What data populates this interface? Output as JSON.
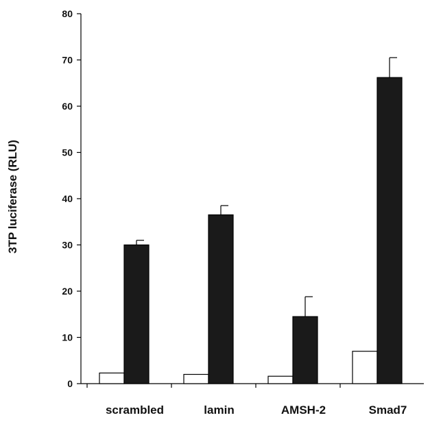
{
  "chart_data": {
    "type": "bar",
    "categories": [
      "scrambled",
      "lamin",
      "AMSH-2",
      "Smad7"
    ],
    "series": [
      {
        "values": [
          2.3,
          2.0,
          1.6,
          7.0
        ],
        "errors": [
          0,
          0,
          0,
          0
        ],
        "color": "#ffffff"
      },
      {
        "values": [
          30.0,
          36.5,
          14.5,
          66.2
        ],
        "errors": [
          1.0,
          2.0,
          4.3,
          4.3
        ],
        "color": "#1a1a1a"
      }
    ],
    "ylabel": "3TP luciferase (RLU)",
    "ylim": [
      0,
      80
    ],
    "yticks": [
      0,
      10,
      20,
      30,
      40,
      50,
      60,
      70,
      80
    ],
    "grid": false
  }
}
